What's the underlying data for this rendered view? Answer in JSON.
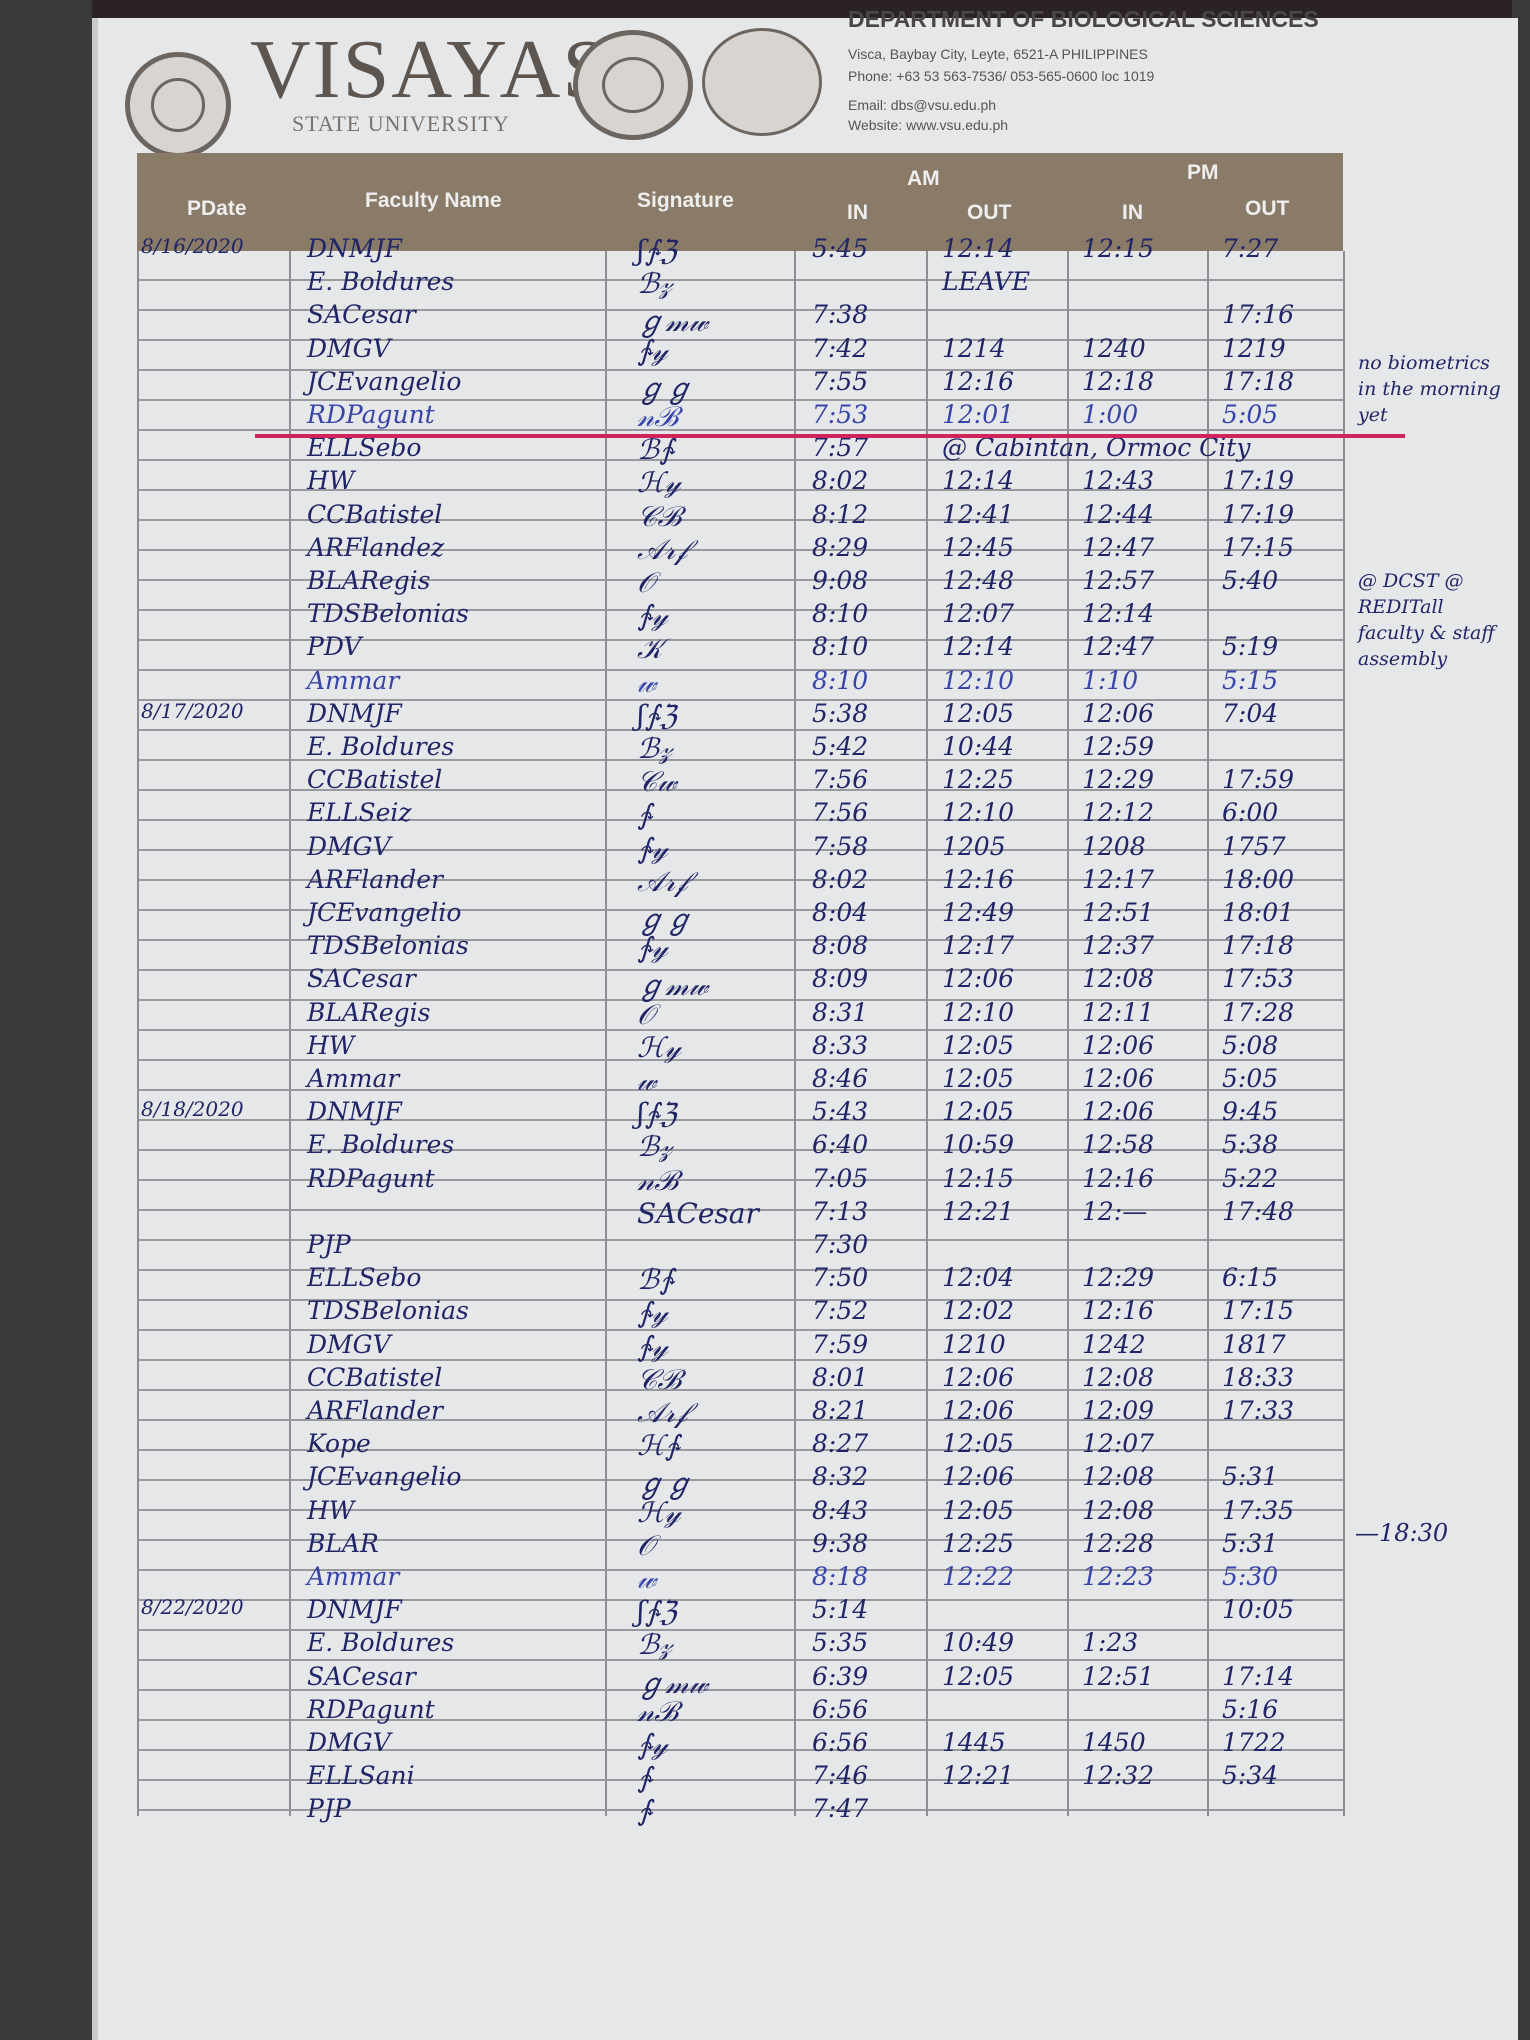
{
  "letterhead": {
    "university": "VISAYAS",
    "university_sub": "STATE UNIVERSITY",
    "department": "DEPARTMENT OF BIOLOGICAL SCIENCES",
    "address": "Visca, Baybay City, Leyte, 6521-A PHILIPPINES",
    "phone": "Phone: +63 53 563-7536/ 053-565-0600 loc 1019",
    "email": "Email: dbs@vsu.edu.ph",
    "website": "Website: www.vsu.edu.ph",
    "header_color": "#8a7a68"
  },
  "table": {
    "headers": {
      "date": "PDate",
      "name": "Faculty Name",
      "signature": "Signature",
      "am": "AM",
      "pm": "PM",
      "in": "IN",
      "out": "OUT"
    },
    "rows": [
      {
        "date": "8/16/2020",
        "name": "DNMJF",
        "sig": "ʃ∱ℨ",
        "ain": "5:45",
        "aout": "12:14",
        "pin": "12:15",
        "pout": "7:27"
      },
      {
        "date": "",
        "name": "E. Boldures",
        "sig": "ℬ𝓏",
        "ain": "",
        "aout": "LEAVE",
        "pin": "",
        "pout": ""
      },
      {
        "date": "",
        "name": "SACesar",
        "sig": "ℊ𝓂𝓌",
        "ain": "7:38",
        "aout": "",
        "pin": "",
        "pout": "17:16"
      },
      {
        "date": "",
        "name": "DMGV",
        "sig": "∱𝓎",
        "ain": "7:42",
        "aout": "1214",
        "pin": "1240",
        "pout": "1219"
      },
      {
        "date": "",
        "name": "JCEvangelio",
        "sig": "ℊℊ",
        "ain": "7:55",
        "aout": "12:16",
        "pin": "12:18",
        "pout": "17:18"
      },
      {
        "date": "",
        "name": "RDPagunt",
        "sig": "𝓃ℬ",
        "ain": "7:53",
        "aout": "12:01",
        "pin": "1:00",
        "pout": "5:05",
        "blue": true
      },
      {
        "date": "",
        "name": "ELLSebo",
        "sig": "ℬ∱",
        "ain": "7:57",
        "aout": "@ Cabintan, Ormoc City",
        "pin": "",
        "pout": ""
      },
      {
        "date": "",
        "name": "HW",
        "sig": "ℋ𝓎",
        "ain": "8:02",
        "aout": "12:14",
        "pin": "12:43",
        "pout": "17:19"
      },
      {
        "date": "",
        "name": "CCBatistel",
        "sig": "𝒞ℬ",
        "ain": "8:12",
        "aout": "12:41",
        "pin": "12:44",
        "pout": "17:19"
      },
      {
        "date": "",
        "name": "ARFlandez",
        "sig": "𝒜𝓇𝒻",
        "ain": "8:29",
        "aout": "12:45",
        "pin": "12:47",
        "pout": "17:15"
      },
      {
        "date": "",
        "name": "BLARegis",
        "sig": "𝒪",
        "ain": "9:08",
        "aout": "12:48",
        "pin": "12:57",
        "pout": "5:40"
      },
      {
        "date": "",
        "name": "TDSBelonias",
        "sig": "∱𝓎",
        "ain": "8:10",
        "aout": "12:07",
        "pin": "12:14",
        "pout": ""
      },
      {
        "date": "",
        "name": "PDV",
        "sig": "𝒦",
        "ain": "8:10",
        "aout": "12:14",
        "pin": "12:47",
        "pout": "5:19"
      },
      {
        "date": "",
        "name": "Ammar",
        "sig": "𝓌",
        "ain": "8:10",
        "aout": "12:10",
        "pin": "1:10",
        "pout": "5:15",
        "blue": true
      },
      {
        "date": "8/17/2020",
        "name": "DNMJF",
        "sig": "ʃ∱ℨ",
        "ain": "5:38",
        "aout": "12:05",
        "pin": "12:06",
        "pout": "7:04"
      },
      {
        "date": "",
        "name": "E. Boldures",
        "sig": "ℬ𝓏",
        "ain": "5:42",
        "aout": "10:44",
        "pin": "12:59",
        "pout": ""
      },
      {
        "date": "",
        "name": "CCBatistel",
        "sig": "𝒞𝓌",
        "ain": "7:56",
        "aout": "12:25",
        "pin": "12:29",
        "pout": "17:59"
      },
      {
        "date": "",
        "name": "ELLSeiz",
        "sig": "∱",
        "ain": "7:56",
        "aout": "12:10",
        "pin": "12:12",
        "pout": "6:00"
      },
      {
        "date": "",
        "name": "DMGV",
        "sig": "∱𝓎",
        "ain": "7:58",
        "aout": "1205",
        "pin": "1208",
        "pout": "1757"
      },
      {
        "date": "",
        "name": "ARFlander",
        "sig": "𝒜𝓇𝒻",
        "ain": "8:02",
        "aout": "12:16",
        "pin": "12:17",
        "pout": "18:00"
      },
      {
        "date": "",
        "name": "JCEvangelio",
        "sig": "ℊℊ",
        "ain": "8:04",
        "aout": "12:49",
        "pin": "12:51",
        "pout": "18:01"
      },
      {
        "date": "",
        "name": "TDSBelonias",
        "sig": "∱𝓎",
        "ain": "8:08",
        "aout": "12:17",
        "pin": "12:37",
        "pout": "17:18"
      },
      {
        "date": "",
        "name": "SACesar",
        "sig": "ℊ𝓂𝓌",
        "ain": "8:09",
        "aout": "12:06",
        "pin": "12:08",
        "pout": "17:53"
      },
      {
        "date": "",
        "name": "BLARegis",
        "sig": "𝒪",
        "ain": "8:31",
        "aout": "12:10",
        "pin": "12:11",
        "pout": "17:28"
      },
      {
        "date": "",
        "name": "HW",
        "sig": "ℋ𝓎",
        "ain": "8:33",
        "aout": "12:05",
        "pin": "12:06",
        "pout": "5:08"
      },
      {
        "date": "",
        "name": "Ammar",
        "sig": "𝓌",
        "ain": "8:46",
        "aout": "12:05",
        "pin": "12:06",
        "pout": "5:05"
      },
      {
        "date": "8/18/2020",
        "name": "DNMJF",
        "sig": "ʃ∱ℨ",
        "ain": "5:43",
        "aout": "12:05",
        "pin": "12:06",
        "pout": "9:45"
      },
      {
        "date": "",
        "name": "E. Boldures",
        "sig": "ℬ𝓏",
        "ain": "6:40",
        "aout": "10:59",
        "pin": "12:58",
        "pout": "5:38"
      },
      {
        "date": "",
        "name": "RDPagunt",
        "sig": "𝓃ℬ",
        "ain": "7:05",
        "aout": "12:15",
        "pin": "12:16",
        "pout": "5:22"
      },
      {
        "date": "",
        "name": "",
        "sig": "SACesar",
        "ain": "7:13",
        "aout": "12:21",
        "pin": "12:—",
        "pout": "17:48"
      },
      {
        "date": "",
        "name": "PJP",
        "sig": "",
        "ain": "7:30",
        "aout": "",
        "pin": "",
        "pout": ""
      },
      {
        "date": "",
        "name": "ELLSebo",
        "sig": "ℬ∱",
        "ain": "7:50",
        "aout": "12:04",
        "pin": "12:29",
        "pout": "6:15"
      },
      {
        "date": "",
        "name": "TDSBelonias",
        "sig": "∱𝓎",
        "ain": "7:52",
        "aout": "12:02",
        "pin": "12:16",
        "pout": "17:15"
      },
      {
        "date": "",
        "name": "DMGV",
        "sig": "∱𝓎",
        "ain": "7:59",
        "aout": "1210",
        "pin": "1242",
        "pout": "1817"
      },
      {
        "date": "",
        "name": "CCBatistel",
        "sig": "𝒞ℬ",
        "ain": "8:01",
        "aout": "12:06",
        "pin": "12:08",
        "pout": "18:33"
      },
      {
        "date": "",
        "name": "ARFlander",
        "sig": "𝒜𝓇𝒻",
        "ain": "8:21",
        "aout": "12:06",
        "pin": "12:09",
        "pout": "17:33"
      },
      {
        "date": "",
        "name": "Kope",
        "sig": "ℋ∱",
        "ain": "8:27",
        "aout": "12:05",
        "pin": "12:07",
        "pout": ""
      },
      {
        "date": "",
        "name": "JCEvangelio",
        "sig": "ℊℊ",
        "ain": "8:32",
        "aout": "12:06",
        "pin": "12:08",
        "pout": "5:31"
      },
      {
        "date": "",
        "name": "HW",
        "sig": "ℋ𝓎",
        "ain": "8:43",
        "aout": "12:05",
        "pin": "12:08",
        "pout": "17:35"
      },
      {
        "date": "",
        "name": "BLAR",
        "sig": "𝒪",
        "ain": "9:38",
        "aout": "12:25",
        "pin": "12:28",
        "pout": "5:31"
      },
      {
        "date": "",
        "name": "Ammar",
        "sig": "𝓌",
        "ain": "8:18",
        "aout": "12:22",
        "pin": "12:23",
        "pout": "5:30",
        "blue": true
      },
      {
        "date": "8/22/2020",
        "name": "DNMJF",
        "sig": "ʃ∱ℨ",
        "ain": "5:14",
        "aout": "",
        "pin": "",
        "pout": "10:05"
      },
      {
        "date": "",
        "name": "E. Boldures",
        "sig": "ℬ𝓏",
        "ain": "5:35",
        "aout": "10:49",
        "pin": "1:23",
        "pout": ""
      },
      {
        "date": "",
        "name": "SACesar",
        "sig": "ℊ𝓂𝓌",
        "ain": "6:39",
        "aout": "12:05",
        "pin": "12:51",
        "pout": "17:14"
      },
      {
        "date": "",
        "name": "RDPagunt",
        "sig": "𝓃ℬ",
        "ain": "6:56",
        "aout": "",
        "pin": "",
        "pout": "5:16"
      },
      {
        "date": "",
        "name": "DMGV",
        "sig": "∱𝓎",
        "ain": "6:56",
        "aout": "1445",
        "pin": "1450",
        "pout": "1722"
      },
      {
        "date": "",
        "name": "ELLSani",
        "sig": "∱",
        "ain": "7:46",
        "aout": "12:21",
        "pin": "12:32",
        "pout": "5:34"
      },
      {
        "date": "",
        "name": "PJP",
        "sig": "∱",
        "ain": "7:47",
        "aout": "",
        "pin": "",
        "pout": ""
      }
    ]
  },
  "notes": {
    "biometrics": "no biometrics in the morning yet",
    "assembly": "@ DCST @ REDITall faculty & staff assembly",
    "late_out": "—18:30"
  },
  "ink_color": "#1f2566",
  "marker_color": "#d0245a"
}
